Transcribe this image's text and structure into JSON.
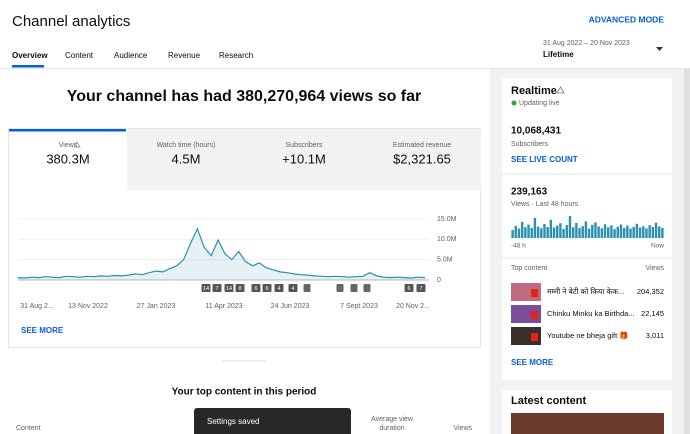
{
  "header": {
    "title": "Channel analytics",
    "advanced_mode": "ADVANCED MODE",
    "tabs": [
      "Overview",
      "Content",
      "Audience",
      "Revenue",
      "Research"
    ],
    "date_range": "31 Aug 2022 – 20 Nov 2023",
    "period": "Lifetime"
  },
  "summary": "Your channel has had 380,270,964 views so far",
  "metrics": [
    {
      "label": "Views",
      "value": "380.3M"
    },
    {
      "label": "Watch time (hours)",
      "value": "4.5M"
    },
    {
      "label": "Subscribers",
      "value": "+10.1M"
    },
    {
      "label": "Estimated revenue",
      "value": "$2,321.65"
    }
  ],
  "main_chart": {
    "type": "line",
    "color": "#2a8fb0",
    "values": [
      600000,
      500000,
      700000,
      600000,
      800000,
      700000,
      600000,
      900000,
      800000,
      700000,
      900000,
      800000,
      1000000,
      900000,
      1100000,
      1000000,
      1200000,
      1500000,
      1300000,
      1800000,
      2200000,
      2000000,
      2800000,
      3500000,
      5000000,
      9000000,
      12600000,
      8000000,
      6000000,
      9800000,
      6500000,
      5000000,
      7000000,
      4500000,
      3500000,
      4200000,
      3000000,
      2500000,
      2000000,
      1800000,
      1500000,
      1300000,
      1200000,
      1000000,
      900000,
      800000,
      900000,
      800000,
      700000,
      800000,
      900000,
      1800000,
      1000000,
      700000,
      600000,
      700000,
      600000,
      500000,
      700000,
      600000
    ],
    "ylim": [
      0,
      15000000
    ],
    "yticks": [
      0,
      {
        "value": 5000000,
        "label": "5.0M"
      },
      {
        "value": 10000000,
        "label": "10.0M"
      },
      {
        "value": 15000000,
        "label": "15.0M"
      }
    ],
    "x_labels": [
      "31 Aug 2...",
      "13 Nov 2022",
      "27 Jan 2023",
      "11 Apr 2023",
      "24 Jun 2023",
      "7 Sept 2023",
      "20 Nov 2..."
    ],
    "annotations": [
      "14",
      "7",
      "14",
      "8",
      "6",
      "6",
      "4",
      "4",
      "6",
      "7"
    ]
  },
  "see_more": "SEE MORE",
  "top_content": {
    "title": "Your top content in this period",
    "columns": [
      "Content",
      "Average view duration",
      "Views"
    ]
  },
  "toast": "Settings saved",
  "realtime": {
    "title": "Realtime",
    "status": "Updating live",
    "subscribers": "10,068,431",
    "subscribers_label": "Subscribers",
    "see_live_count": "SEE LIVE COUNT",
    "views": "239,163",
    "views_label": "Views · Last 48 hours",
    "hourly_views": [
      3000,
      4500,
      3500,
      6000,
      4000,
      5000,
      3800,
      7500,
      4200,
      3600,
      5200,
      4100,
      6800,
      3900,
      4600,
      5500,
      3400,
      4800,
      8200,
      4000,
      5600,
      3700,
      4400,
      6200,
      3500,
      4900,
      5800,
      4300,
      3600,
      5100,
      4000,
      4700,
      3300,
      4200,
      5000,
      3800,
      4600,
      3500,
      4100,
      5300,
      3900,
      4400,
      3600,
      4800,
      4100,
      5700,
      4300,
      3800
    ],
    "axis_start": "-48 h",
    "axis_end": "Now",
    "top_content_label": "Top content",
    "views_column": "Views",
    "rows": [
      {
        "title": "मम्मी ने बेटी को किया केक...",
        "views": "204,352"
      },
      {
        "title": "Chinku Minku ka Birthda...",
        "views": "22,145"
      },
      {
        "title": "Youtube ne bheja gift 🎁",
        "views": "3,011"
      }
    ],
    "see_more": "SEE MORE"
  },
  "latest": {
    "title": "Latest content"
  }
}
